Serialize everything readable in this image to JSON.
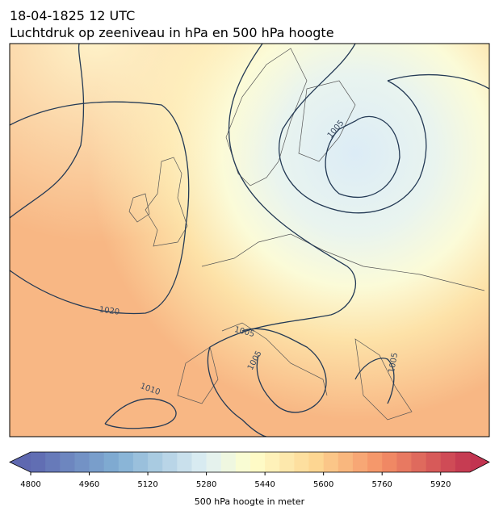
{
  "header": {
    "title": "18-04-1825 12 UTC",
    "subtitle": "Luchtdruk op zeeniveau in hPa en 500 hPa hoogte"
  },
  "isobar_labels": [
    1005,
    1020,
    1005,
    1005,
    1010,
    1005
  ],
  "colorbar": {
    "label": "500 hPa hoogte in meter",
    "levels": [
      4800,
      4840,
      4880,
      4920,
      4960,
      5000,
      5040,
      5080,
      5120,
      5160,
      5200,
      5240,
      5280,
      5320,
      5360,
      5400,
      5440,
      5480,
      5520,
      5560,
      5600,
      5640,
      5680,
      5720,
      5760,
      5800,
      5840,
      5880,
      5920,
      5960,
      6000
    ],
    "ticks": [
      4800,
      4960,
      5120,
      5280,
      5440,
      5600,
      5760,
      5920
    ]
  }
}
